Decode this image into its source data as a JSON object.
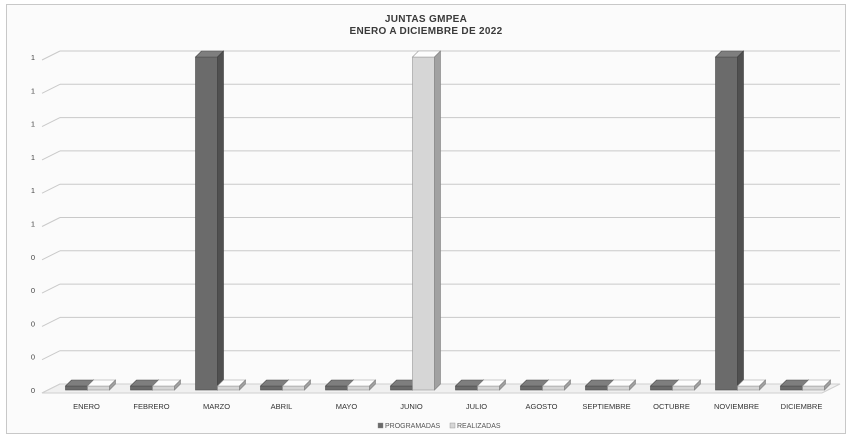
{
  "chart_data": {
    "type": "bar",
    "title": "JUNTAS GMPEA",
    "subtitle": "ENERO A DICIEMBRE DE 2022",
    "categories": [
      "ENERO",
      "FEBRERO",
      "MARZO",
      "ABRIL",
      "MAYO",
      "JUNIO",
      "JULIO",
      "AGOSTO",
      "SEPTIEMBRE",
      "OCTUBRE",
      "NOVIEMBRE",
      "DICIEMBRE"
    ],
    "series": [
      {
        "name": "PROGRAMADAS",
        "values": [
          0,
          0,
          1,
          0,
          0,
          0,
          0,
          0,
          0,
          0,
          1,
          0
        ],
        "color": "#6b6b6b"
      },
      {
        "name": "REALIZADAS",
        "values": [
          0,
          0,
          0,
          0,
          0,
          1,
          0,
          0,
          0,
          0,
          0,
          0
        ],
        "color": "#d6d6d6"
      }
    ],
    "ytick_labels": [
      "0",
      "0",
      "0",
      "0",
      "0",
      "1",
      "1",
      "1",
      "1",
      "1",
      "1"
    ],
    "ylim": [
      0,
      1
    ],
    "grid": true,
    "legend": "bottom",
    "style": "3d-column"
  }
}
